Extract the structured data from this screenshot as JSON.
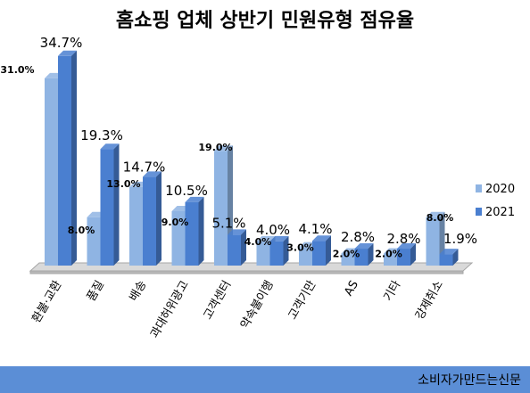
{
  "chart_data": {
    "type": "bar",
    "title": "홈쇼핑 업체 상반기 민원유형 점유율",
    "categories": [
      "환불·교환",
      "품질",
      "배송",
      "과대허위광고",
      "고객센터",
      "약속불이행",
      "고객기만",
      "AS",
      "기타",
      "강제취소"
    ],
    "series": [
      {
        "name": "2020",
        "values": [
          31.0,
          8.0,
          13.0,
          9.0,
          19.0,
          4.0,
          3.0,
          2.0,
          2.0,
          8.0
        ],
        "labels": [
          "31.0%",
          "8.0%",
          "13.0%",
          "9.0%",
          "19.0%",
          "4.0%",
          "3.0%",
          "2.0%",
          "2.0%",
          "8.0%"
        ],
        "color": "#8fb4e3"
      },
      {
        "name": "2021",
        "values": [
          34.7,
          19.3,
          14.7,
          10.5,
          5.1,
          4.0,
          4.1,
          2.8,
          2.8,
          1.9
        ],
        "labels": [
          "34.7%",
          "19.3%",
          "14.7%",
          "10.5%",
          "5.1%",
          "4.0%",
          "4.1%",
          "2.8%",
          "2.8%",
          "1.9%"
        ],
        "color": "#4a7fd0"
      }
    ],
    "ylim": [
      0,
      36
    ],
    "grid": false,
    "legend_position": "right"
  },
  "footer": {
    "source": "소비자가만드는신문"
  }
}
